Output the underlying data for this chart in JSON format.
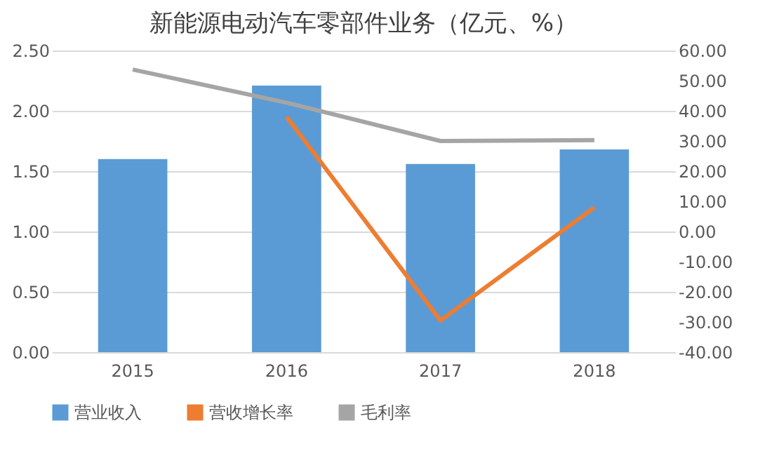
{
  "chart_data": {
    "type": "bar",
    "title": "新能源电动汽车零部件业务（亿元、%）",
    "categories": [
      "2015",
      "2016",
      "2017",
      "2018"
    ],
    "series": [
      {
        "name": "营业收入",
        "color": "#5b9bd5",
        "values": [
          1.6,
          2.21,
          1.56,
          1.68
        ]
      },
      {
        "name": "营收增长率",
        "type": "line",
        "axis": "y2",
        "color": "#ed7d31",
        "values": [
          null,
          38,
          -29.5,
          8
        ]
      },
      {
        "name": "毛利率",
        "type": "line",
        "axis": "y2",
        "color": "#a5a5a5",
        "values": [
          53.7,
          42.7,
          30,
          30.3
        ]
      }
    ],
    "ylim": [
      0,
      2.5
    ],
    "yticks": [
      {
        "value": 0,
        "label": "0.00"
      },
      {
        "value": 0.5,
        "label": "0.50"
      },
      {
        "value": 1,
        "label": "1.00"
      },
      {
        "value": 1.5,
        "label": "1.50"
      },
      {
        "value": 2,
        "label": "2.00"
      },
      {
        "value": 2.5,
        "label": "2.50"
      }
    ],
    "y2lim": [
      -40,
      60
    ],
    "y2ticks": [
      {
        "value": -40,
        "label": "-40.00"
      },
      {
        "value": -30,
        "label": "-30.00"
      },
      {
        "value": -20,
        "label": "-20.00"
      },
      {
        "value": -10,
        "label": "-10.00"
      },
      {
        "value": 0,
        "label": "0.00"
      },
      {
        "value": 10,
        "label": "10.00"
      },
      {
        "value": 20,
        "label": "20.00"
      },
      {
        "value": 30,
        "label": "30.00"
      },
      {
        "value": 40,
        "label": "40.00"
      },
      {
        "value": 50,
        "label": "50.00"
      },
      {
        "value": 60,
        "label": "60.00"
      }
    ],
    "grid": "y",
    "legend": "bottom",
    "marker": "none",
    "line_style": "solid"
  }
}
